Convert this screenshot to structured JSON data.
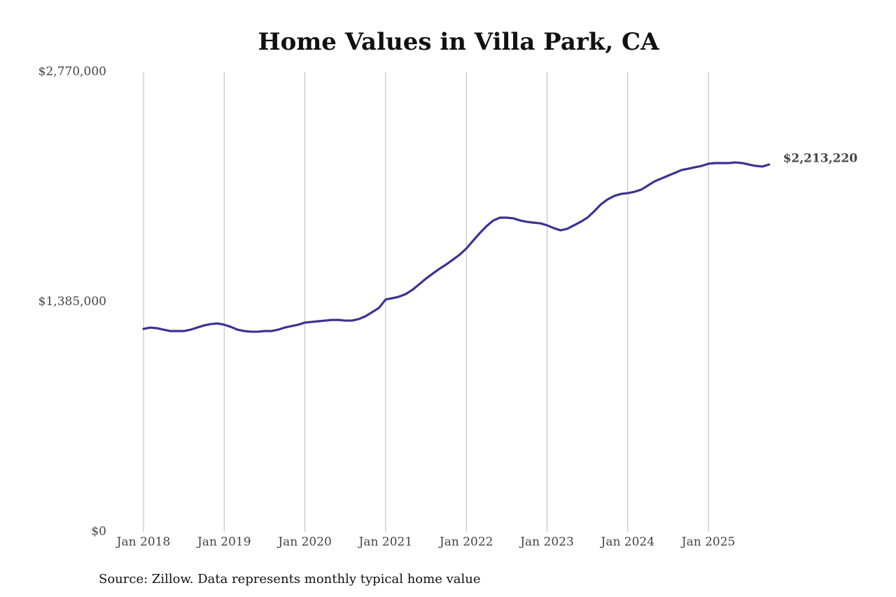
{
  "chart_data": {
    "type": "line",
    "title": "Home Values in Villa Park, CA",
    "source": "Source: Zillow. Data represents monthly typical home value",
    "x": [
      "2018-01",
      "2018-02",
      "2018-03",
      "2018-04",
      "2018-05",
      "2018-06",
      "2018-07",
      "2018-08",
      "2018-09",
      "2018-10",
      "2018-11",
      "2018-12",
      "2019-01",
      "2019-02",
      "2019-03",
      "2019-04",
      "2019-05",
      "2019-06",
      "2019-07",
      "2019-08",
      "2019-09",
      "2019-10",
      "2019-11",
      "2019-12",
      "2020-01",
      "2020-02",
      "2020-03",
      "2020-04",
      "2020-05",
      "2020-06",
      "2020-07",
      "2020-08",
      "2020-09",
      "2020-10",
      "2020-11",
      "2020-12",
      "2021-01",
      "2021-02",
      "2021-03",
      "2021-04",
      "2021-05",
      "2021-06",
      "2021-07",
      "2021-08",
      "2021-09",
      "2021-10",
      "2021-11",
      "2021-12",
      "2022-01",
      "2022-02",
      "2022-03",
      "2022-04",
      "2022-05",
      "2022-06",
      "2022-07",
      "2022-08",
      "2022-09",
      "2022-10",
      "2022-11",
      "2022-12",
      "2023-01",
      "2023-02",
      "2023-03",
      "2023-04",
      "2023-05",
      "2023-06",
      "2023-07",
      "2023-08",
      "2023-09",
      "2023-10",
      "2023-11",
      "2023-12",
      "2024-01",
      "2024-02",
      "2024-03",
      "2024-04",
      "2024-05",
      "2024-06",
      "2024-07",
      "2024-08",
      "2024-09",
      "2024-10",
      "2024-11",
      "2024-12",
      "2025-01",
      "2025-02",
      "2025-03",
      "2025-04",
      "2025-05",
      "2025-06",
      "2025-07",
      "2025-08",
      "2025-09",
      "2025-10"
    ],
    "series": [
      {
        "name": "Home value",
        "color": "#3b3391",
        "values": [
          1223000,
          1231000,
          1227000,
          1218000,
          1210000,
          1210000,
          1210000,
          1218000,
          1231000,
          1244000,
          1252000,
          1256000,
          1248000,
          1235000,
          1218000,
          1210000,
          1206000,
          1206000,
          1210000,
          1210000,
          1218000,
          1231000,
          1240000,
          1248000,
          1261000,
          1265000,
          1269000,
          1273000,
          1277000,
          1277000,
          1273000,
          1273000,
          1282000,
          1299000,
          1324000,
          1349000,
          1400000,
          1408000,
          1417000,
          1433000,
          1459000,
          1492000,
          1526000,
          1556000,
          1585000,
          1611000,
          1640000,
          1670000,
          1707000,
          1754000,
          1800000,
          1842000,
          1876000,
          1893000,
          1893000,
          1889000,
          1876000,
          1868000,
          1863000,
          1859000,
          1847000,
          1830000,
          1817000,
          1826000,
          1847000,
          1868000,
          1893000,
          1931000,
          1973000,
          2003000,
          2024000,
          2036000,
          2041000,
          2049000,
          2062000,
          2087000,
          2112000,
          2129000,
          2146000,
          2163000,
          2180000,
          2188000,
          2197000,
          2205000,
          2218000,
          2222000,
          2222000,
          2222000,
          2226000,
          2222000,
          2213000,
          2205000,
          2201000,
          2213220
        ]
      }
    ],
    "annotations": [
      {
        "x": "2025-10",
        "y": 2213220,
        "label": "$2,213,220"
      }
    ],
    "ylim": [
      0,
      2770000
    ],
    "yticks": [
      {
        "value": 0,
        "label": "$0"
      },
      {
        "value": 1385000,
        "label": "$1,385,000"
      },
      {
        "value": 2770000,
        "label": "$2,770,000"
      }
    ],
    "xticks": [
      {
        "value": "2018-01",
        "label": "Jan 2018"
      },
      {
        "value": "2019-01",
        "label": "Jan 2019"
      },
      {
        "value": "2020-01",
        "label": "Jan 2020"
      },
      {
        "value": "2021-01",
        "label": "Jan 2021"
      },
      {
        "value": "2022-01",
        "label": "Jan 2022"
      },
      {
        "value": "2023-01",
        "label": "Jan 2023"
      },
      {
        "value": "2024-01",
        "label": "Jan 2024"
      },
      {
        "value": "2025-01",
        "label": "Jan 2025"
      }
    ],
    "grid": true
  }
}
